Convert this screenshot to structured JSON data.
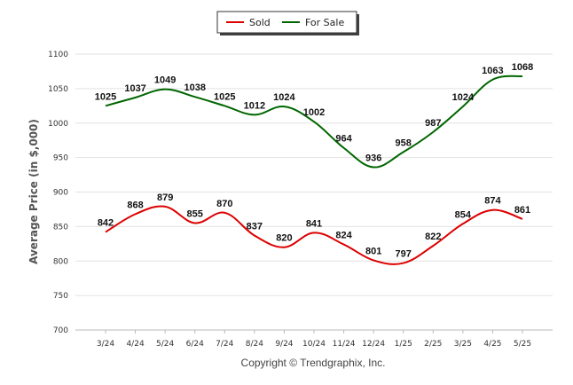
{
  "chart_data": {
    "type": "line",
    "title": "",
    "xlabel": "",
    "ylabel": "Average Price (in $,000)",
    "categories": [
      "3/24",
      "4/24",
      "5/24",
      "6/24",
      "7/24",
      "8/24",
      "9/24",
      "10/24",
      "11/24",
      "12/24",
      "1/25",
      "2/25",
      "3/25",
      "4/25",
      "5/25"
    ],
    "ylim": [
      700,
      1100
    ],
    "yticks": [
      700,
      750,
      800,
      850,
      900,
      950,
      1000,
      1050,
      1100
    ],
    "grid": true,
    "legend_position": "top-center",
    "series": [
      {
        "name": "Sold",
        "color": "#dd0000",
        "values": [
          842,
          868,
          879,
          855,
          870,
          837,
          820,
          841,
          824,
          801,
          797,
          822,
          854,
          874,
          861
        ]
      },
      {
        "name": "For Sale",
        "color": "#006600",
        "values": [
          1025,
          1037,
          1049,
          1038,
          1025,
          1012,
          1024,
          1002,
          964,
          936,
          958,
          987,
          1024,
          1063,
          1068
        ]
      }
    ]
  },
  "footer": {
    "credit": "Copyright © Trendgraphix, Inc."
  }
}
